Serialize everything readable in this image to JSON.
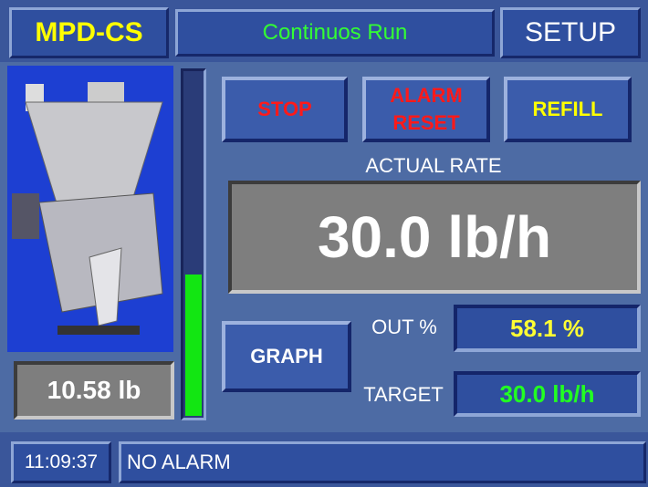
{
  "header": {
    "brand": "MPD-CS",
    "status": "Continuos Run",
    "setup": "SETUP"
  },
  "buttons": {
    "stop": "STOP",
    "alarm_reset": [
      "ALARM",
      "RESET"
    ],
    "refill": "REFILL",
    "graph": "GRAPH"
  },
  "rate": {
    "label": "ACTUAL RATE",
    "value": "30.0 lb/h"
  },
  "weight": "10.58 lb",
  "out": {
    "label": "OUT %",
    "value": "58.1 %"
  },
  "target": {
    "label": "TARGET",
    "value": "30.0 lb/h"
  },
  "footer": {
    "time": "11:09:37",
    "alarm": "NO ALARM"
  }
}
